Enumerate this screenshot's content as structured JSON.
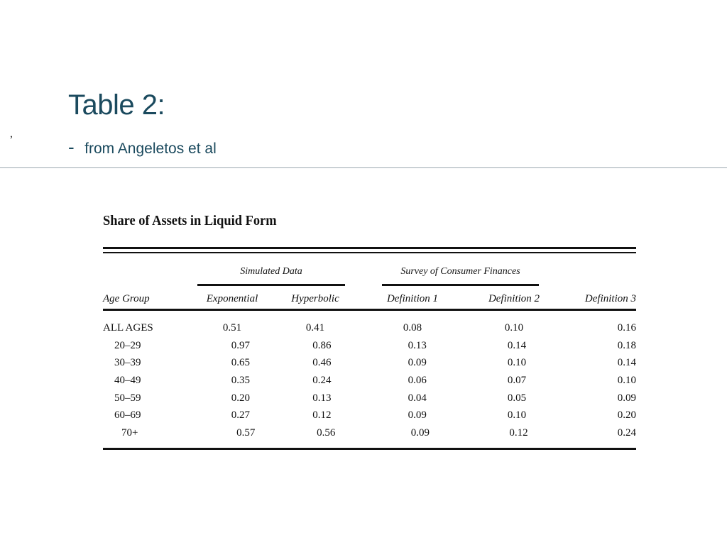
{
  "slide": {
    "title": "Table 2:",
    "subtitle_dash": "-",
    "subtitle": "from Angeletos et al",
    "side_mark": ","
  },
  "table": {
    "title": "Share of Assets in Liquid Form",
    "group_headers": [
      "Simulated Data",
      "Survey of Consumer Finances"
    ],
    "columns": [
      "Age Group",
      "Exponential",
      "Hyperbolic",
      "Definition 1",
      "Definition 2",
      "Definition 3"
    ],
    "rows": [
      [
        "ALL AGES",
        "0.51",
        "0.41",
        "0.08",
        "0.10",
        "0.16"
      ],
      [
        "20–29",
        "0.97",
        "0.86",
        "0.13",
        "0.14",
        "0.18"
      ],
      [
        "30–39",
        "0.65",
        "0.46",
        "0.09",
        "0.10",
        "0.14"
      ],
      [
        "40–49",
        "0.35",
        "0.24",
        "0.06",
        "0.07",
        "0.10"
      ],
      [
        "50–59",
        "0.20",
        "0.13",
        "0.04",
        "0.05",
        "0.09"
      ],
      [
        "60–69",
        "0.27",
        "0.12",
        "0.09",
        "0.10",
        "0.20"
      ],
      [
        "70+",
        "0.57",
        "0.56",
        "0.09",
        "0.12",
        "0.24"
      ]
    ]
  },
  "colors": {
    "title": "#1b4a5e",
    "divider": "#9ba8ae"
  }
}
